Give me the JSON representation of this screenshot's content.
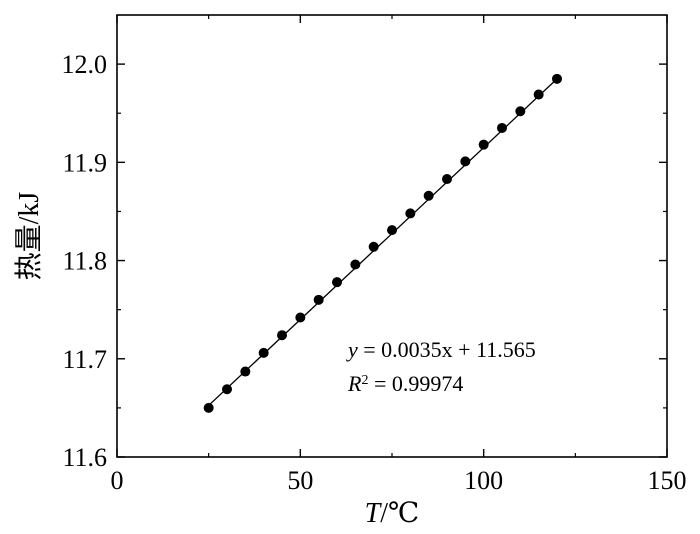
{
  "chart_data": {
    "type": "scatter",
    "xlabel": {
      "var": "T",
      "unit": "/℃"
    },
    "ylabel": "热量/kJ",
    "xlim": [
      0,
      150
    ],
    "ylim": [
      11.6,
      12.05
    ],
    "xticks": [
      0,
      50,
      100,
      150
    ],
    "xtick_labels": [
      "0",
      "50",
      "100",
      "150"
    ],
    "yticks": [
      11.6,
      11.7,
      11.8,
      11.9,
      12.0
    ],
    "ytick_labels": [
      "11.6",
      "11.7",
      "11.8",
      "11.9",
      "12.0"
    ],
    "grid": false,
    "series": [
      {
        "marker": "filled-circle",
        "color": "#000000",
        "x": [
          25,
          30,
          35,
          40,
          45,
          50,
          55,
          60,
          65,
          70,
          75,
          80,
          85,
          90,
          95,
          100,
          105,
          110,
          115,
          120
        ],
        "y": [
          11.65,
          11.669,
          11.687,
          11.706,
          11.724,
          11.742,
          11.76,
          11.778,
          11.796,
          11.814,
          11.831,
          11.848,
          11.866,
          11.883,
          11.901,
          11.918,
          11.935,
          11.952,
          11.969,
          11.985
        ]
      }
    ],
    "fit": {
      "slope": 0.0035,
      "intercept": 11.565,
      "x_range": [
        25,
        120
      ],
      "color": "#000000"
    },
    "annotation": {
      "eq_y": "y",
      "eq_rest": " = 0.0035x + 11.565",
      "r_letter": "R",
      "r_sup": "2",
      "r_rest": " = 0.99974"
    }
  }
}
